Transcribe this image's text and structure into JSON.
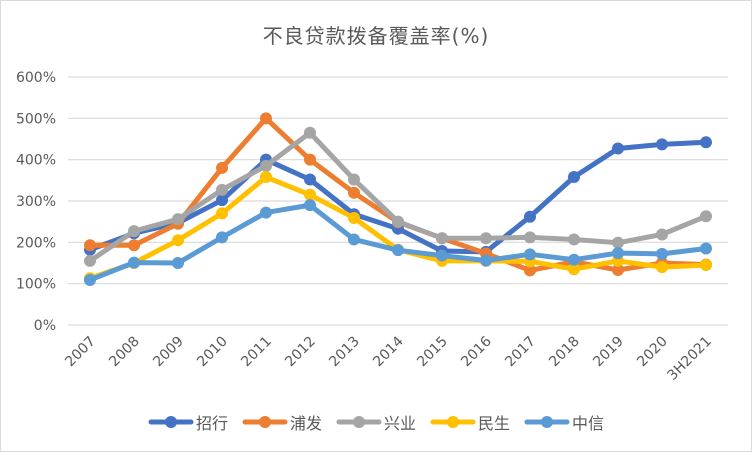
{
  "chart_data": {
    "type": "line",
    "title": "不良贷款拨备覆盖率(%)",
    "xlabel": "",
    "ylabel": "",
    "categories": [
      "2007",
      "2008",
      "2009",
      "2010",
      "2011",
      "2012",
      "2013",
      "2014",
      "2015",
      "2016",
      "2017",
      "2018",
      "2019",
      "2020",
      "3H2021"
    ],
    "ylim": [
      0,
      600
    ],
    "yticks": [
      "0%",
      "100%",
      "200%",
      "300%",
      "400%",
      "500%",
      "600%"
    ],
    "grid": true,
    "legend_position": "bottom",
    "series": [
      {
        "name": "招行",
        "color": "#4472c4",
        "values": [
          182,
          222,
          247,
          302,
          400,
          352,
          268,
          233,
          179,
          177,
          262,
          358,
          427,
          437,
          442
        ]
      },
      {
        "name": "浦发",
        "color": "#ed7d31",
        "values": [
          193,
          193,
          245,
          380,
          500,
          400,
          320,
          249,
          210,
          173,
          132,
          153,
          133,
          150,
          146
        ]
      },
      {
        "name": "兴业",
        "color": "#a5a5a5",
        "values": [
          155,
          227,
          256,
          327,
          385,
          465,
          352,
          250,
          210,
          210,
          212,
          207,
          199,
          219,
          263
        ]
      },
      {
        "name": "民生",
        "color": "#ffc000",
        "values": [
          113,
          150,
          205,
          270,
          358,
          315,
          259,
          182,
          155,
          155,
          154,
          135,
          155,
          140,
          145
        ]
      },
      {
        "name": "中信",
        "color": "#5b9bd5",
        "values": [
          109,
          151,
          150,
          212,
          272,
          290,
          207,
          181,
          168,
          156,
          171,
          158,
          174,
          172,
          185
        ]
      }
    ]
  }
}
